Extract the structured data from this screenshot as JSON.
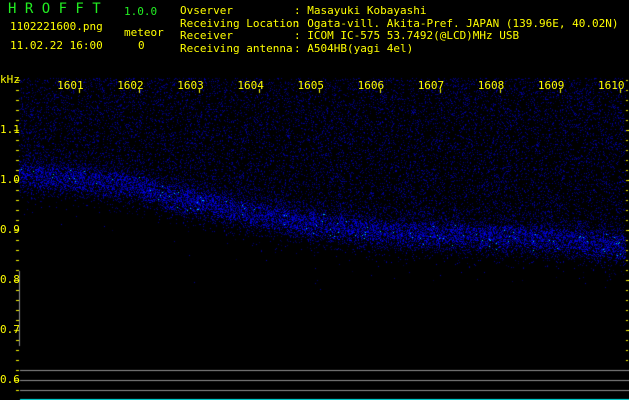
{
  "header": {
    "app_title": "H R O F F T",
    "version": "1.0.0",
    "filename": "1102221600.png",
    "datetime": "11.02.22 16:00",
    "meteor_label": "meteor",
    "meteor_count": "0",
    "info": [
      {
        "label": "Ovserver",
        "value": ": Masayuki Kobayashi"
      },
      {
        "label": "Receiving Location",
        "value": ": Ogata-vill. Akita-Pref. JAPAN (139.96E, 40.02N)"
      },
      {
        "label": "Receiver",
        "value": ": ICOM IC-575 53.7492(@LCD)MHz USB"
      },
      {
        "label": "Receiving antenna",
        "value": ": A504HB(yagi 4el)"
      }
    ]
  },
  "colors": {
    "text": "#ffff00",
    "title": "#22ee22",
    "signal": "#0000ff",
    "strong_signal": "#00c8ff",
    "baseline": "#00e0e0",
    "gridline": "#909090"
  },
  "chart_data": {
    "type": "heatmap",
    "ylabel": "kHz",
    "x_ticks": [
      "1601",
      "1602",
      "1603",
      "1604",
      "1605",
      "1606",
      "1607",
      "1608",
      "1609",
      "1610"
    ],
    "y_ticks": [
      "1.1",
      "1.0",
      "0.9",
      "0.8",
      "0.7",
      "0.6"
    ],
    "xlim": [
      1600.0,
      1610.1
    ],
    "ylim": [
      0.6,
      1.2
    ],
    "trace": {
      "x": [
        1600.0,
        1601,
        1602,
        1602.5,
        1603,
        1604,
        1605,
        1606,
        1607,
        1608,
        1609,
        1610.1
      ],
      "y": [
        1.01,
        1.0,
        0.985,
        0.965,
        0.955,
        0.93,
        0.91,
        0.895,
        0.89,
        0.885,
        0.88,
        0.865
      ]
    }
  }
}
